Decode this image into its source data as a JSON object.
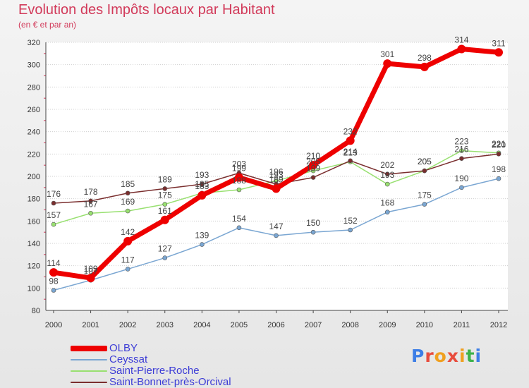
{
  "header": {
    "title": "Evolution des Impôts locaux par Habitant",
    "subtitle": "(en € et par an)"
  },
  "logo": {
    "text": "Proxiti",
    "colors": [
      "#3d7ee6",
      "#e84c3d",
      "#f0a020",
      "#e84c3d",
      "#f0a020",
      "#3db24a",
      "#3d7ee6"
    ]
  },
  "chart_data": {
    "type": "line",
    "title": "Evolution des Impôts locaux par Habitant",
    "subtitle": "(en € et par an)",
    "xlabel": "",
    "ylabel": "",
    "categories": [
      "2000",
      "2001",
      "2002",
      "2003",
      "2004",
      "2005",
      "2006",
      "2007",
      "2008",
      "2009",
      "2010",
      "2011",
      "2012"
    ],
    "ylim": [
      80,
      320
    ],
    "yticks": [
      80,
      100,
      120,
      140,
      160,
      180,
      200,
      220,
      240,
      260,
      280,
      300,
      320
    ],
    "grid": "horizontal",
    "legend_position": "bottom-left",
    "series": [
      {
        "name": "OLBY",
        "color": "#ee0000",
        "width": 7,
        "values": [
          114,
          109,
          142,
          161,
          183,
          199,
          189,
          210,
          232,
          301,
          298,
          314,
          311
        ],
        "labels": [
          "114",
          "109",
          "142",
          "161",
          "183",
          "199",
          "189",
          "210",
          "232",
          "301",
          "298",
          "314",
          "311"
        ]
      },
      {
        "name": "Ceyssat",
        "color": "#7aa6d2",
        "width": 1.5,
        "values": [
          98,
          107,
          117,
          127,
          139,
          154,
          147,
          150,
          152,
          168,
          175,
          190,
          198
        ],
        "labels": [
          "98",
          "107",
          "117",
          "127",
          "139",
          "154",
          "147",
          "150",
          "152",
          "168",
          "175",
          "190",
          "198"
        ]
      },
      {
        "name": "Saint-Pierre-Roche",
        "color": "#98e070",
        "width": 1.5,
        "values": [
          157,
          167,
          169,
          175,
          185,
          188,
          196,
          205,
          213,
          193,
          205,
          223,
          221
        ],
        "labels": [
          "157",
          "167",
          "169",
          "175",
          "185",
          "188",
          "196",
          "205",
          "213",
          "193",
          "205",
          "223",
          "221"
        ]
      },
      {
        "name": "Saint-Bonnet-près-Orcival",
        "color": "#7a2e2e",
        "width": 1.5,
        "values": [
          176,
          178,
          185,
          189,
          193,
          203,
          193,
          199,
          214,
          202,
          205,
          216,
          220
        ],
        "labels": [
          "176",
          "178",
          "185",
          "189",
          "193",
          "203",
          "193",
          "199",
          "214",
          "202",
          "205",
          "216",
          "220"
        ]
      }
    ]
  }
}
